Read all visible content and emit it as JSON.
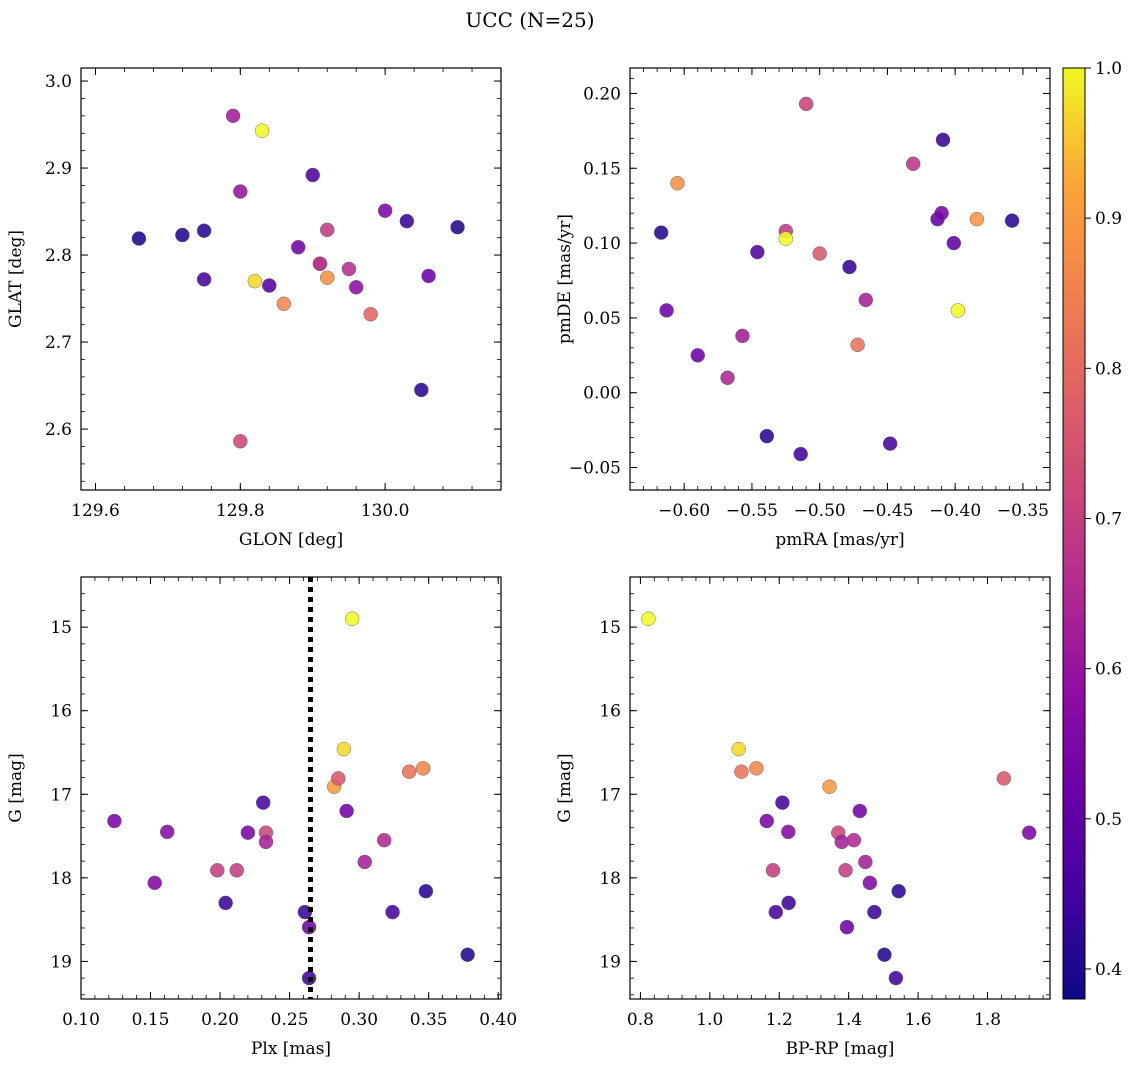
{
  "figure": {
    "title": "UCC (N=25)"
  },
  "colorbar": {
    "range": [
      0.38,
      1.0
    ],
    "ticks": [
      0.4,
      0.5,
      0.6,
      0.7,
      0.8,
      0.9,
      1.0
    ],
    "tick_labels": [
      "0.4",
      "0.5",
      "0.6",
      "0.7",
      "0.8",
      "0.9",
      "1.0"
    ],
    "colormap": "plasma"
  },
  "chart_data": [
    {
      "type": "scatter",
      "xlabel": "GLON [deg]",
      "ylabel": "GLAT [deg]",
      "xlim": [
        129.58,
        130.16
      ],
      "ylim": [
        2.53,
        3.015
      ],
      "y_inverted": false,
      "xticks": [
        129.6,
        129.8,
        130.0
      ],
      "xtick_labels": [
        "129.6",
        "129.8",
        "130.0"
      ],
      "yticks": [
        2.6,
        2.7,
        2.8,
        2.9,
        3.0
      ],
      "ytick_labels": [
        "2.6",
        "2.7",
        "2.8",
        "2.9",
        "3.0"
      ],
      "points": [
        {
          "x": 129.66,
          "y": 2.819,
          "c": 0.4
        },
        {
          "x": 129.72,
          "y": 2.823,
          "c": 0.41
        },
        {
          "x": 129.75,
          "y": 2.828,
          "c": 0.42
        },
        {
          "x": 129.75,
          "y": 2.772,
          "c": 0.46
        },
        {
          "x": 129.79,
          "y": 2.96,
          "c": 0.62
        },
        {
          "x": 129.8,
          "y": 2.873,
          "c": 0.6
        },
        {
          "x": 129.83,
          "y": 2.943,
          "c": 1.0
        },
        {
          "x": 129.82,
          "y": 2.77,
          "c": 0.97
        },
        {
          "x": 129.84,
          "y": 2.765,
          "c": 0.48
        },
        {
          "x": 129.86,
          "y": 2.744,
          "c": 0.86
        },
        {
          "x": 129.8,
          "y": 2.586,
          "c": 0.72
        },
        {
          "x": 129.88,
          "y": 2.809,
          "c": 0.53
        },
        {
          "x": 129.9,
          "y": 2.892,
          "c": 0.47
        },
        {
          "x": 129.91,
          "y": 2.79,
          "c": 0.64
        },
        {
          "x": 129.91,
          "y": 2.79,
          "c": 0.68
        },
        {
          "x": 129.92,
          "y": 2.829,
          "c": 0.69
        },
        {
          "x": 129.92,
          "y": 2.774,
          "c": 0.88
        },
        {
          "x": 129.95,
          "y": 2.784,
          "c": 0.66
        },
        {
          "x": 129.96,
          "y": 2.763,
          "c": 0.58
        },
        {
          "x": 129.98,
          "y": 2.732,
          "c": 0.79
        },
        {
          "x": 130.0,
          "y": 2.851,
          "c": 0.55
        },
        {
          "x": 130.03,
          "y": 2.839,
          "c": 0.44
        },
        {
          "x": 130.05,
          "y": 2.645,
          "c": 0.42
        },
        {
          "x": 130.06,
          "y": 2.776,
          "c": 0.52
        },
        {
          "x": 130.1,
          "y": 2.832,
          "c": 0.41
        }
      ]
    },
    {
      "type": "scatter",
      "xlabel": "pmRA [mas/yr]",
      "ylabel": "pmDE [mas/yr]",
      "xlim": [
        -0.64,
        -0.33
      ],
      "ylim": [
        -0.065,
        0.217
      ],
      "y_inverted": false,
      "xticks": [
        -0.6,
        -0.55,
        -0.5,
        -0.45,
        -0.4,
        -0.35
      ],
      "xtick_labels": [
        "−0.60",
        "−0.55",
        "−0.50",
        "−0.45",
        "−0.40",
        "−0.35"
      ],
      "yticks": [
        -0.05,
        0.0,
        0.05,
        0.1,
        0.15,
        0.2
      ],
      "ytick_labels": [
        "−0.05",
        "0.00",
        "0.05",
        "0.10",
        "0.15",
        "0.20"
      ],
      "points": [
        {
          "x": -0.617,
          "y": 0.107,
          "c": 0.41
        },
        {
          "x": -0.613,
          "y": 0.055,
          "c": 0.52
        },
        {
          "x": -0.605,
          "y": 0.14,
          "c": 0.88
        },
        {
          "x": -0.59,
          "y": 0.025,
          "c": 0.52
        },
        {
          "x": -0.568,
          "y": 0.01,
          "c": 0.64
        },
        {
          "x": -0.557,
          "y": 0.038,
          "c": 0.62
        },
        {
          "x": -0.546,
          "y": 0.094,
          "c": 0.48
        },
        {
          "x": -0.539,
          "y": -0.029,
          "c": 0.42
        },
        {
          "x": -0.525,
          "y": 0.108,
          "c": 0.69
        },
        {
          "x": -0.525,
          "y": 0.103,
          "c": 1.0
        },
        {
          "x": -0.514,
          "y": -0.041,
          "c": 0.45
        },
        {
          "x": -0.51,
          "y": 0.193,
          "c": 0.71
        },
        {
          "x": -0.5,
          "y": 0.093,
          "c": 0.76
        },
        {
          "x": -0.478,
          "y": 0.084,
          "c": 0.43
        },
        {
          "x": -0.472,
          "y": 0.032,
          "c": 0.82
        },
        {
          "x": -0.466,
          "y": 0.062,
          "c": 0.63
        },
        {
          "x": -0.448,
          "y": -0.034,
          "c": 0.46
        },
        {
          "x": -0.431,
          "y": 0.153,
          "c": 0.68
        },
        {
          "x": -0.413,
          "y": 0.116,
          "c": 0.51
        },
        {
          "x": -0.41,
          "y": 0.12,
          "c": 0.54
        },
        {
          "x": -0.409,
          "y": 0.169,
          "c": 0.44
        },
        {
          "x": -0.401,
          "y": 0.1,
          "c": 0.5
        },
        {
          "x": -0.398,
          "y": 0.055,
          "c": 1.0
        },
        {
          "x": -0.384,
          "y": 0.116,
          "c": 0.89
        },
        {
          "x": -0.358,
          "y": 0.115,
          "c": 0.42
        }
      ]
    },
    {
      "type": "scatter",
      "xlabel": "Plx [mas]",
      "ylabel": "G [mag]",
      "xlim": [
        0.1,
        0.402
      ],
      "ylim": [
        14.4,
        19.45
      ],
      "y_inverted": true,
      "vline": {
        "x": 0.265,
        "style": "dotted",
        "color": "#000000"
      },
      "xticks": [
        0.1,
        0.15,
        0.2,
        0.25,
        0.3,
        0.35,
        0.4
      ],
      "xtick_labels": [
        "0.10",
        "0.15",
        "0.20",
        "0.25",
        "0.30",
        "0.35",
        "0.40"
      ],
      "yticks": [
        15,
        16,
        17,
        18,
        19
      ],
      "ytick_labels": [
        "15",
        "16",
        "17",
        "18",
        "19"
      ],
      "points": [
        {
          "x": 0.124,
          "y": 17.32,
          "c": 0.55
        },
        {
          "x": 0.153,
          "y": 18.06,
          "c": 0.56
        },
        {
          "x": 0.162,
          "y": 17.45,
          "c": 0.57
        },
        {
          "x": 0.198,
          "y": 17.91,
          "c": 0.7
        },
        {
          "x": 0.204,
          "y": 18.3,
          "c": 0.44
        },
        {
          "x": 0.212,
          "y": 17.91,
          "c": 0.7
        },
        {
          "x": 0.22,
          "y": 17.46,
          "c": 0.55
        },
        {
          "x": 0.231,
          "y": 17.1,
          "c": 0.46
        },
        {
          "x": 0.233,
          "y": 17.46,
          "c": 0.72
        },
        {
          "x": 0.233,
          "y": 17.57,
          "c": 0.63
        },
        {
          "x": 0.261,
          "y": 18.41,
          "c": 0.44
        },
        {
          "x": 0.264,
          "y": 18.59,
          "c": 0.53
        },
        {
          "x": 0.264,
          "y": 19.2,
          "c": 0.45
        },
        {
          "x": 0.282,
          "y": 16.91,
          "c": 0.9
        },
        {
          "x": 0.285,
          "y": 16.81,
          "c": 0.76
        },
        {
          "x": 0.289,
          "y": 16.46,
          "c": 0.97
        },
        {
          "x": 0.291,
          "y": 17.2,
          "c": 0.53
        },
        {
          "x": 0.295,
          "y": 14.9,
          "c": 1.0
        },
        {
          "x": 0.304,
          "y": 17.81,
          "c": 0.63
        },
        {
          "x": 0.318,
          "y": 17.55,
          "c": 0.65
        },
        {
          "x": 0.324,
          "y": 18.41,
          "c": 0.46
        },
        {
          "x": 0.336,
          "y": 16.73,
          "c": 0.82
        },
        {
          "x": 0.346,
          "y": 16.69,
          "c": 0.86
        },
        {
          "x": 0.348,
          "y": 18.16,
          "c": 0.42
        },
        {
          "x": 0.378,
          "y": 18.92,
          "c": 0.41
        }
      ]
    },
    {
      "type": "scatter",
      "xlabel": "BP-RP [mag]",
      "ylabel": "G [mag]",
      "xlim": [
        0.77,
        1.98
      ],
      "ylim": [
        14.4,
        19.45
      ],
      "y_inverted": true,
      "xticks": [
        0.8,
        1.0,
        1.2,
        1.4,
        1.6,
        1.8
      ],
      "xtick_labels": [
        "0.8",
        "1.0",
        "1.2",
        "1.4",
        "1.6",
        "1.8"
      ],
      "yticks": [
        15,
        16,
        17,
        18,
        19
      ],
      "ytick_labels": [
        "15",
        "16",
        "17",
        "18",
        "19"
      ],
      "points": [
        {
          "x": 0.823,
          "y": 14.9,
          "c": 1.0
        },
        {
          "x": 1.083,
          "y": 16.46,
          "c": 0.97
        },
        {
          "x": 1.091,
          "y": 16.73,
          "c": 0.82
        },
        {
          "x": 1.134,
          "y": 16.69,
          "c": 0.86
        },
        {
          "x": 1.164,
          "y": 17.32,
          "c": 0.55
        },
        {
          "x": 1.182,
          "y": 17.91,
          "c": 0.7
        },
        {
          "x": 1.19,
          "y": 18.41,
          "c": 0.46
        },
        {
          "x": 1.209,
          "y": 17.1,
          "c": 0.46
        },
        {
          "x": 1.226,
          "y": 17.45,
          "c": 0.57
        },
        {
          "x": 1.227,
          "y": 18.3,
          "c": 0.44
        },
        {
          "x": 1.345,
          "y": 16.91,
          "c": 0.9
        },
        {
          "x": 1.37,
          "y": 17.46,
          "c": 0.72
        },
        {
          "x": 1.38,
          "y": 17.57,
          "c": 0.63
        },
        {
          "x": 1.391,
          "y": 17.91,
          "c": 0.7
        },
        {
          "x": 1.395,
          "y": 18.59,
          "c": 0.53
        },
        {
          "x": 1.415,
          "y": 17.55,
          "c": 0.65
        },
        {
          "x": 1.432,
          "y": 17.2,
          "c": 0.53
        },
        {
          "x": 1.448,
          "y": 17.81,
          "c": 0.63
        },
        {
          "x": 1.461,
          "y": 18.06,
          "c": 0.56
        },
        {
          "x": 1.474,
          "y": 18.41,
          "c": 0.44
        },
        {
          "x": 1.503,
          "y": 18.92,
          "c": 0.41
        },
        {
          "x": 1.536,
          "y": 19.2,
          "c": 0.45
        },
        {
          "x": 1.544,
          "y": 18.16,
          "c": 0.42
        },
        {
          "x": 1.847,
          "y": 16.81,
          "c": 0.76
        },
        {
          "x": 1.92,
          "y": 17.46,
          "c": 0.55
        }
      ]
    }
  ]
}
